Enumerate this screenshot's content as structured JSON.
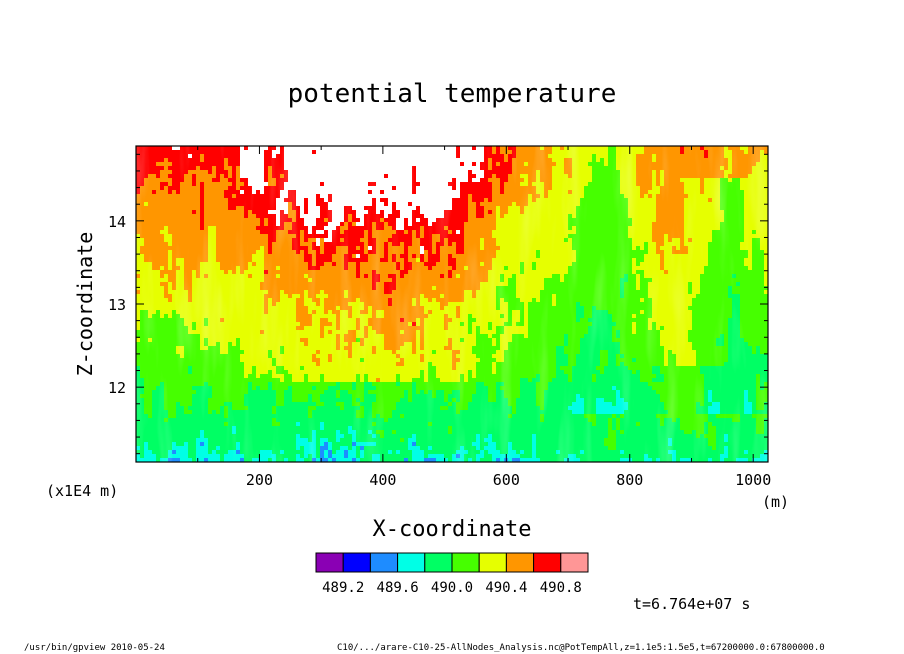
{
  "chart_data": {
    "type": "heatmap",
    "title": "potential temperature",
    "xlabel": "X-coordinate",
    "ylabel": "Z-coordinate",
    "x_unit": "(m)",
    "y_unit": "(x1E4 m)",
    "xlim": [
      0,
      1024
    ],
    "ylim": [
      11.1,
      14.9
    ],
    "x_ticks": [
      {
        "value": 200,
        "label": "200"
      },
      {
        "value": 400,
        "label": "400"
      },
      {
        "value": 600,
        "label": "600"
      },
      {
        "value": 800,
        "label": "800"
      },
      {
        "value": 1000,
        "label": "1000"
      }
    ],
    "y_ticks": [
      {
        "value": 12,
        "label": "12"
      },
      {
        "value": 13,
        "label": "13"
      },
      {
        "value": 14,
        "label": "14"
      }
    ],
    "levels": [
      489.2,
      489.6,
      490.0,
      490.4,
      490.8
    ],
    "colorbar_labels": [
      "489.2",
      "489.6",
      "490.0",
      "490.4",
      "490.8"
    ],
    "colors": [
      "#8a00b4",
      "#0000ff",
      "#1e8cff",
      "#00ffe6",
      "#00ff64",
      "#46ff00",
      "#e6ff00",
      "#ff9600",
      "#ff0000",
      "#ff9696"
    ],
    "time_label": "t=6.764e+07 s"
  },
  "footer": {
    "left": "/usr/bin/gpview  2010-05-24",
    "right": "C10/.../arare-C10-25-AllNodes_Analysis.nc@PotTempAll,z=1.1e5:1.5e5,t=67200000.0:67800000.0"
  }
}
